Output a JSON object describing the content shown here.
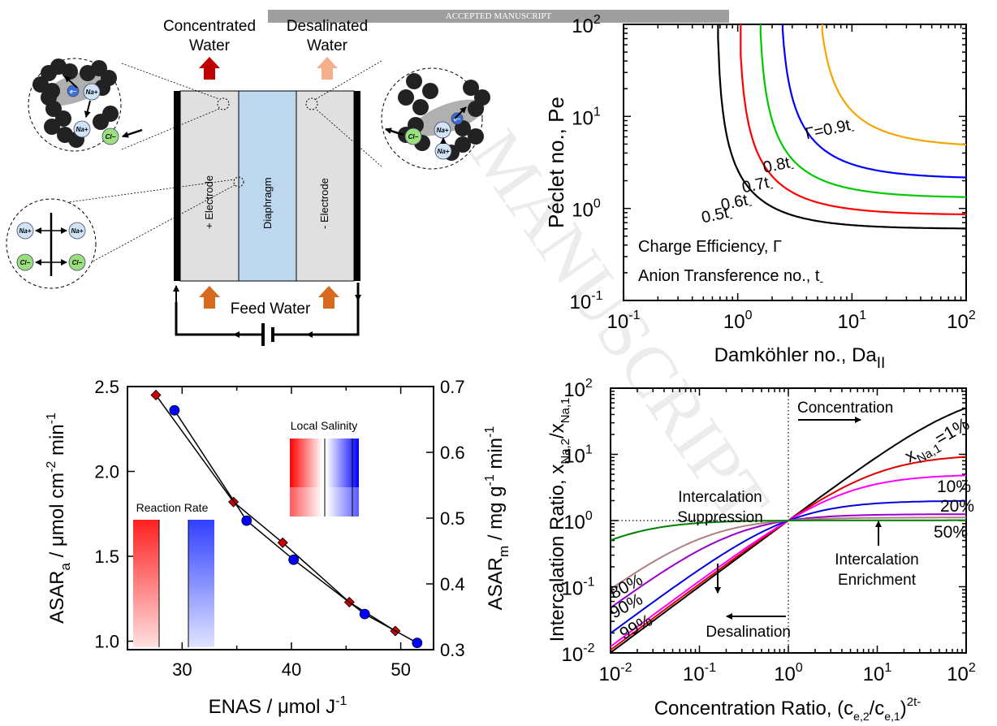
{
  "banner": "ACCEPTED MANUSCRIPT",
  "watermark": "MANUSCRIPT",
  "schematic": {
    "top_left_label": [
      "Concentrated",
      "Water"
    ],
    "top_right_label": [
      "Desalinated",
      "Water"
    ],
    "feed_label": "Feed Water",
    "left_electrode": "+ Electrode",
    "diaphragm": "Diaphragm",
    "right_electrode": "- Electrode",
    "ions": {
      "na": "Na+",
      "cl": "Cl−",
      "e": "e−"
    }
  },
  "colors": {
    "red": "#ff0000",
    "blue": "#0000ff",
    "black": "#000000",
    "green": "#00c800",
    "orange": "#f5a500",
    "magenta": "#ff00ff",
    "purple": "#9900cc",
    "brown": "#b08080",
    "darkgreen": "#008000",
    "arrow_red": "#c00000",
    "arrow_peach": "#f3b08a",
    "arrow_orange": "#d86a20",
    "diaphragm": "#bcd7ee",
    "electrode": "#e0e0e0"
  },
  "chart_data": [
    {
      "id": "pe",
      "type": "line",
      "xlabel": "Damköhler no., Da",
      "xlabel_sub": "II",
      "ylabel": "Péclet no., Pe",
      "xscale": "log",
      "yscale": "log",
      "xlim": [
        0.1,
        100
      ],
      "ylim": [
        0.1,
        100
      ],
      "xticks": [
        {
          "base": "10",
          "exp": "-1"
        },
        {
          "base": "10",
          "exp": "0"
        },
        {
          "base": "10",
          "exp": "1"
        },
        {
          "base": "10",
          "exp": "2"
        }
      ],
      "yticks": [
        {
          "base": "10",
          "exp": "-1"
        },
        {
          "base": "10",
          "exp": "0"
        },
        {
          "base": "10",
          "exp": "1"
        },
        {
          "base": "10",
          "exp": "2"
        }
      ],
      "legend_text": [
        "Charge Efficiency, Γ",
        "Anion Transference no., t"
      ],
      "series": [
        {
          "label": "0.5t",
          "gamma": 0.5,
          "color": "#000000",
          "x_asymptote": 0.65,
          "y_asymptote": 0.6
        },
        {
          "label": "0.6t",
          "gamma": 0.6,
          "color": "#ff0000",
          "x_asymptote": 1.0,
          "y_asymptote": 0.85
        },
        {
          "label": "0.7t",
          "gamma": 0.7,
          "color": "#00c800",
          "x_asymptote": 1.5,
          "y_asymptote": 1.3
        },
        {
          "label": "0.8t",
          "gamma": 0.8,
          "color": "#0000ff",
          "x_asymptote": 2.3,
          "y_asymptote": 2.1
        },
        {
          "label": "Γ=0.9t",
          "gamma": 0.9,
          "color": "#f5a500",
          "x_asymptote": 4.8,
          "y_asymptote": 4.6
        }
      ]
    },
    {
      "id": "asar",
      "type": "line",
      "xlabel": "ENAS / μmol J",
      "xlabel_sup": "-1",
      "ylabel_left": "ASAR / μmol cm min",
      "ylabel_right": "ASAR / mg g min",
      "xlim": [
        25,
        53
      ],
      "ylim_left": [
        0.95,
        2.5
      ],
      "ylim_right": [
        0.3,
        0.7
      ],
      "xticks": [
        "30",
        "40",
        "50"
      ],
      "yticks_left": [
        "1.0",
        "1.5",
        "2.0",
        "2.5"
      ],
      "yticks_right": [
        "0.3",
        "0.4",
        "0.5",
        "0.6",
        "0.7"
      ],
      "series": [
        {
          "name": "ASAR_a",
          "marker": "diamond",
          "color": "#cc0000",
          "x": [
            27.6,
            34.7,
            39.2,
            45.3,
            49.5
          ],
          "y": [
            2.45,
            1.82,
            1.58,
            1.23,
            1.06
          ]
        },
        {
          "name": "ASAR_m",
          "marker": "circle",
          "color": "#0000ff",
          "x": [
            29.3,
            35.9,
            40.2,
            46.7,
            51.5
          ],
          "y": [
            2.36,
            1.71,
            1.48,
            1.16,
            0.99
          ]
        }
      ],
      "insets": [
        "Local Salinity",
        "Reaction Rate"
      ]
    },
    {
      "id": "ratio",
      "type": "line",
      "xlabel": "Concentration Ratio, (c/c)",
      "ylabel": "Intercalation Ratio, x/x",
      "xscale": "log",
      "yscale": "log",
      "xlim": [
        0.01,
        100
      ],
      "ylim": [
        0.01,
        100
      ],
      "xticks": [
        {
          "base": "10",
          "exp": "-2"
        },
        {
          "base": "10",
          "exp": "-1"
        },
        {
          "base": "10",
          "exp": "0"
        },
        {
          "base": "10",
          "exp": "1"
        },
        {
          "base": "10",
          "exp": "2"
        }
      ],
      "yticks": [
        {
          "base": "10",
          "exp": "-2"
        },
        {
          "base": "10",
          "exp": "-1"
        },
        {
          "base": "10",
          "exp": "0"
        },
        {
          "base": "10",
          "exp": "1"
        },
        {
          "base": "10",
          "exp": "2"
        }
      ],
      "annotations": [
        "Concentration",
        "Desalination",
        "Intercalation Suppression",
        "Intercalation Enrichment"
      ],
      "series": [
        {
          "label": "=1%",
          "x1": 0.01,
          "color": "#000000"
        },
        {
          "label": "10%",
          "x1": 0.1,
          "color": "#dd0000"
        },
        {
          "label": "20%",
          "x1": 0.2,
          "color": "#ff00ff"
        },
        {
          "label": "50%",
          "x1": 0.5,
          "color": "#0000dd"
        },
        {
          "label": "80%",
          "x1": 0.8,
          "color": "#9900cc"
        },
        {
          "label": "90%",
          "x1": 0.9,
          "color": "#b08080"
        },
        {
          "label": "99%",
          "x1": 0.99,
          "color": "#008000"
        }
      ]
    }
  ]
}
